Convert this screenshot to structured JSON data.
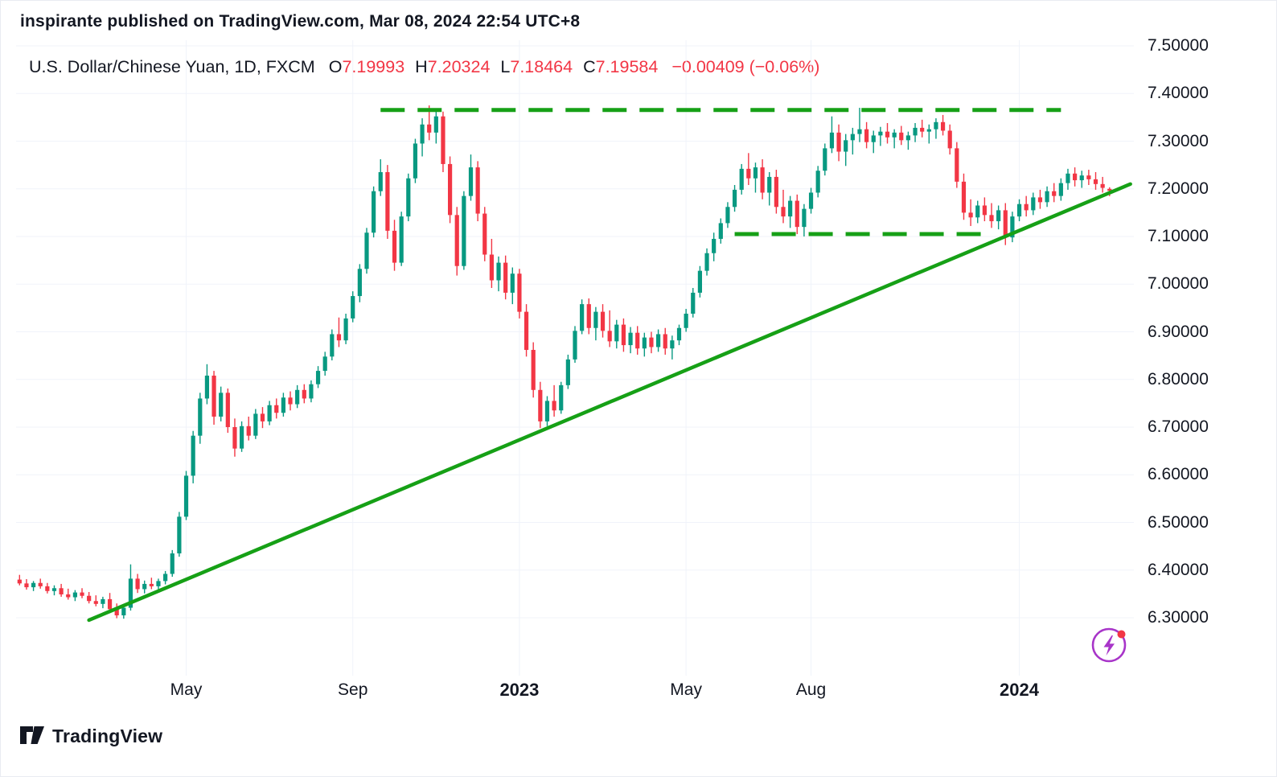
{
  "header": {
    "attribution": "inspirante published on TradingView.com, Mar 08, 2024 22:54 UTC+8"
  },
  "legend": {
    "title": "U.S. Dollar/Chinese Yuan, 1D, FXCM",
    "ohlc": [
      {
        "label": "O",
        "value": "7.19993"
      },
      {
        "label": "H",
        "value": "7.20324"
      },
      {
        "label": "L",
        "value": "7.18464"
      },
      {
        "label": "C",
        "value": "7.19584"
      }
    ],
    "change": "−0.00409 (−0.06%)",
    "value_color": "#f23645"
  },
  "footer": {
    "brand": "TradingView"
  },
  "chart_data": {
    "type": "candlestick",
    "title": "U.S. Dollar/Chinese Yuan, 1D, FXCM",
    "symbol": "USD/CNY",
    "timeframe": "1D",
    "exchange": "FXCM",
    "grid": true,
    "ylim": [
      6.3,
      7.5
    ],
    "price_axis": {
      "labels": [
        "7.50000",
        "7.40000",
        "7.30000",
        "7.20000",
        "7.10000",
        "7.00000",
        "6.90000",
        "6.80000",
        "6.70000",
        "6.60000",
        "6.50000",
        "6.40000",
        "6.30000"
      ],
      "step": 0.1
    },
    "time_axis": {
      "ticks": [
        {
          "label": "May",
          "index": 24,
          "year": false
        },
        {
          "label": "Sep",
          "index": 48,
          "year": false
        },
        {
          "label": "2023",
          "index": 72,
          "year": true
        },
        {
          "label": "May",
          "index": 96,
          "year": false
        },
        {
          "label": "Aug",
          "index": 114,
          "year": false
        },
        {
          "label": "2024",
          "index": 144,
          "year": true
        }
      ]
    },
    "colors": {
      "up": "#089981",
      "down": "#f23645",
      "trend": "#16a016",
      "grid": "#f0f3fa",
      "axis_text": "#131722",
      "accent_purple": "#a835c9",
      "alert_red": "#f23645"
    },
    "annotations": {
      "trendline": {
        "style": "solid",
        "from_index": 10,
        "from_price": 6.295,
        "to_index": 160,
        "to_price": 7.21
      },
      "resistance_line": {
        "style": "dashed",
        "price": 7.3655,
        "from_index": 52,
        "to_index": 150
      },
      "support_line": {
        "style": "dashed",
        "price": 7.105,
        "from_index": 103,
        "to_index": 139
      }
    },
    "candles": [
      [
        6.38,
        6.39,
        6.368,
        6.372
      ],
      [
        6.372,
        6.381,
        6.359,
        6.364
      ],
      [
        6.364,
        6.377,
        6.356,
        6.373
      ],
      [
        6.373,
        6.382,
        6.361,
        6.366
      ],
      [
        6.366,
        6.373,
        6.351,
        6.356
      ],
      [
        6.356,
        6.368,
        6.347,
        6.362
      ],
      [
        6.362,
        6.371,
        6.344,
        6.349
      ],
      [
        6.349,
        6.361,
        6.338,
        6.343
      ],
      [
        6.343,
        6.358,
        6.335,
        6.353
      ],
      [
        6.353,
        6.362,
        6.341,
        6.346
      ],
      [
        6.346,
        6.354,
        6.33,
        6.335
      ],
      [
        6.335,
        6.347,
        6.324,
        6.329
      ],
      [
        6.329,
        6.344,
        6.32,
        6.339
      ],
      [
        6.339,
        6.352,
        6.312,
        6.318
      ],
      [
        6.318,
        6.33,
        6.299,
        6.305
      ],
      [
        6.305,
        6.326,
        6.298,
        6.321
      ],
      [
        6.321,
        6.412,
        6.315,
        6.382
      ],
      [
        6.382,
        6.392,
        6.352,
        6.36
      ],
      [
        6.36,
        6.378,
        6.351,
        6.371
      ],
      [
        6.371,
        6.384,
        6.36,
        6.366
      ],
      [
        6.366,
        6.382,
        6.357,
        6.377
      ],
      [
        6.377,
        6.398,
        6.37,
        6.392
      ],
      [
        6.392,
        6.442,
        6.386,
        6.435
      ],
      [
        6.435,
        6.522,
        6.428,
        6.512
      ],
      [
        6.512,
        6.608,
        6.505,
        6.598
      ],
      [
        6.598,
        6.692,
        6.582,
        6.682
      ],
      [
        6.682,
        6.772,
        6.665,
        6.76
      ],
      [
        6.76,
        6.832,
        6.748,
        6.808
      ],
      [
        6.808,
        6.818,
        6.705,
        6.722
      ],
      [
        6.722,
        6.785,
        6.712,
        6.772
      ],
      [
        6.772,
        6.781,
        6.688,
        6.7
      ],
      [
        6.7,
        6.718,
        6.638,
        6.655
      ],
      [
        6.655,
        6.712,
        6.648,
        6.702
      ],
      [
        6.702,
        6.722,
        6.672,
        6.682
      ],
      [
        6.682,
        6.738,
        6.675,
        6.728
      ],
      [
        6.728,
        6.742,
        6.698,
        6.712
      ],
      [
        6.712,
        6.755,
        6.704,
        6.746
      ],
      [
        6.746,
        6.76,
        6.718,
        6.73
      ],
      [
        6.73,
        6.772,
        6.722,
        6.762
      ],
      [
        6.762,
        6.775,
        6.735,
        6.748
      ],
      [
        6.748,
        6.788,
        6.74,
        6.778
      ],
      [
        6.778,
        6.79,
        6.75,
        6.76
      ],
      [
        6.76,
        6.798,
        6.752,
        6.79
      ],
      [
        6.79,
        6.828,
        6.782,
        6.818
      ],
      [
        6.818,
        6.858,
        6.808,
        6.848
      ],
      [
        6.848,
        6.905,
        6.84,
        6.895
      ],
      [
        6.895,
        6.93,
        6.868,
        6.882
      ],
      [
        6.882,
        6.938,
        6.874,
        6.928
      ],
      [
        6.928,
        6.985,
        6.92,
        6.975
      ],
      [
        6.975,
        7.042,
        6.962,
        7.032
      ],
      [
        7.032,
        7.118,
        7.022,
        7.108
      ],
      [
        7.108,
        7.205,
        7.098,
        7.195
      ],
      [
        7.195,
        7.262,
        7.185,
        7.235
      ],
      [
        7.235,
        7.25,
        7.095,
        7.112
      ],
      [
        7.112,
        7.135,
        7.028,
        7.045
      ],
      [
        7.045,
        7.152,
        7.038,
        7.142
      ],
      [
        7.142,
        7.232,
        7.132,
        7.222
      ],
      [
        7.222,
        7.305,
        7.212,
        7.295
      ],
      [
        7.295,
        7.348,
        7.268,
        7.335
      ],
      [
        7.335,
        7.375,
        7.302,
        7.318
      ],
      [
        7.318,
        7.368,
        7.295,
        7.352
      ],
      [
        7.352,
        7.362,
        7.235,
        7.252
      ],
      [
        7.252,
        7.268,
        7.128,
        7.145
      ],
      [
        7.145,
        7.162,
        7.018,
        7.038
      ],
      [
        7.038,
        7.195,
        7.03,
        7.185
      ],
      [
        7.185,
        7.272,
        7.175,
        7.245
      ],
      [
        7.245,
        7.258,
        7.132,
        7.148
      ],
      [
        7.148,
        7.162,
        7.048,
        7.062
      ],
      [
        7.062,
        7.095,
        6.992,
        7.008
      ],
      [
        7.008,
        7.058,
        6.985,
        7.045
      ],
      [
        7.045,
        7.06,
        6.968,
        6.982
      ],
      [
        6.982,
        7.035,
        6.958,
        7.022
      ],
      [
        7.022,
        7.032,
        6.928,
        6.942
      ],
      [
        6.942,
        6.958,
        6.848,
        6.862
      ],
      [
        6.862,
        6.878,
        6.762,
        6.778
      ],
      [
        6.778,
        6.795,
        6.698,
        6.712
      ],
      [
        6.712,
        6.765,
        6.702,
        6.755
      ],
      [
        6.755,
        6.788,
        6.722,
        6.735
      ],
      [
        6.735,
        6.795,
        6.728,
        6.788
      ],
      [
        6.788,
        6.852,
        6.78,
        6.842
      ],
      [
        6.842,
        6.912,
        6.835,
        6.902
      ],
      [
        6.902,
        6.968,
        6.895,
        6.958
      ],
      [
        6.958,
        6.97,
        6.895,
        6.908
      ],
      [
        6.908,
        6.952,
        6.882,
        6.942
      ],
      [
        6.942,
        6.958,
        6.888,
        6.902
      ],
      [
        6.902,
        6.945,
        6.868,
        6.88
      ],
      [
        6.88,
        6.925,
        6.865,
        6.915
      ],
      [
        6.915,
        6.928,
        6.858,
        6.872
      ],
      [
        6.872,
        6.91,
        6.855,
        6.898
      ],
      [
        6.898,
        6.912,
        6.852,
        6.865
      ],
      [
        6.865,
        6.898,
        6.848,
        6.888
      ],
      [
        6.888,
        6.9,
        6.855,
        6.868
      ],
      [
        6.868,
        6.905,
        6.858,
        6.895
      ],
      [
        6.895,
        6.908,
        6.852,
        6.865
      ],
      [
        6.865,
        6.892,
        6.842,
        6.882
      ],
      [
        6.882,
        6.915,
        6.872,
        6.908
      ],
      [
        6.908,
        6.948,
        6.9,
        6.938
      ],
      [
        6.938,
        6.992,
        6.93,
        6.982
      ],
      [
        6.982,
        7.038,
        6.972,
        7.028
      ],
      [
        7.028,
        7.075,
        7.018,
        7.065
      ],
      [
        7.065,
        7.108,
        7.048,
        7.095
      ],
      [
        7.095,
        7.138,
        7.085,
        7.128
      ],
      [
        7.128,
        7.172,
        7.118,
        7.162
      ],
      [
        7.162,
        7.208,
        7.152,
        7.198
      ],
      [
        7.198,
        7.252,
        7.188,
        7.242
      ],
      [
        7.242,
        7.275,
        7.208,
        7.222
      ],
      [
        7.222,
        7.255,
        7.192,
        7.245
      ],
      [
        7.245,
        7.262,
        7.178,
        7.192
      ],
      [
        7.192,
        7.235,
        7.165,
        7.225
      ],
      [
        7.225,
        7.24,
        7.148,
        7.162
      ],
      [
        7.162,
        7.198,
        7.128,
        7.142
      ],
      [
        7.142,
        7.185,
        7.118,
        7.175
      ],
      [
        7.175,
        7.188,
        7.105,
        7.12
      ],
      [
        7.12,
        7.168,
        7.1,
        7.158
      ],
      [
        7.158,
        7.202,
        7.148,
        7.192
      ],
      [
        7.192,
        7.248,
        7.182,
        7.238
      ],
      [
        7.238,
        7.295,
        7.228,
        7.285
      ],
      [
        7.285,
        7.352,
        7.275,
        7.318
      ],
      [
        7.318,
        7.335,
        7.258,
        7.278
      ],
      [
        7.278,
        7.315,
        7.248,
        7.302
      ],
      [
        7.302,
        7.328,
        7.272,
        7.315
      ],
      [
        7.315,
        7.37,
        7.298,
        7.325
      ],
      [
        7.325,
        7.34,
        7.285,
        7.298
      ],
      [
        7.298,
        7.322,
        7.275,
        7.312
      ],
      [
        7.312,
        7.33,
        7.29,
        7.32
      ],
      [
        7.32,
        7.338,
        7.295,
        7.308
      ],
      [
        7.308,
        7.325,
        7.285,
        7.318
      ],
      [
        7.318,
        7.332,
        7.292,
        7.302
      ],
      [
        7.302,
        7.32,
        7.282,
        7.312
      ],
      [
        7.312,
        7.338,
        7.298,
        7.328
      ],
      [
        7.328,
        7.345,
        7.308,
        7.32
      ],
      [
        7.32,
        7.335,
        7.295,
        7.325
      ],
      [
        7.325,
        7.348,
        7.305,
        7.34
      ],
      [
        7.34,
        7.355,
        7.312,
        7.322
      ],
      [
        7.322,
        7.335,
        7.272,
        7.285
      ],
      [
        7.285,
        7.298,
        7.202,
        7.215
      ],
      [
        7.215,
        7.232,
        7.135,
        7.15
      ],
      [
        7.15,
        7.178,
        7.122,
        7.14
      ],
      [
        7.14,
        7.175,
        7.128,
        7.165
      ],
      [
        7.165,
        7.182,
        7.132,
        7.145
      ],
      [
        7.145,
        7.17,
        7.118,
        7.132
      ],
      [
        7.132,
        7.165,
        7.115,
        7.155
      ],
      [
        7.155,
        7.17,
        7.082,
        7.098
      ],
      [
        7.098,
        7.152,
        7.088,
        7.142
      ],
      [
        7.142,
        7.178,
        7.132,
        7.168
      ],
      [
        7.168,
        7.185,
        7.142,
        7.155
      ],
      [
        7.155,
        7.192,
        7.145,
        7.182
      ],
      [
        7.182,
        7.198,
        7.158,
        7.172
      ],
      [
        7.172,
        7.205,
        7.162,
        7.195
      ],
      [
        7.195,
        7.212,
        7.172,
        7.185
      ],
      [
        7.185,
        7.222,
        7.175,
        7.212
      ],
      [
        7.212,
        7.242,
        7.198,
        7.232
      ],
      [
        7.232,
        7.245,
        7.205,
        7.218
      ],
      [
        7.218,
        7.238,
        7.202,
        7.228
      ],
      [
        7.228,
        7.24,
        7.208,
        7.22
      ],
      [
        7.22,
        7.235,
        7.198,
        7.21
      ],
      [
        7.21,
        7.225,
        7.192,
        7.202
      ],
      [
        7.19993,
        7.20324,
        7.18464,
        7.19584
      ]
    ]
  }
}
